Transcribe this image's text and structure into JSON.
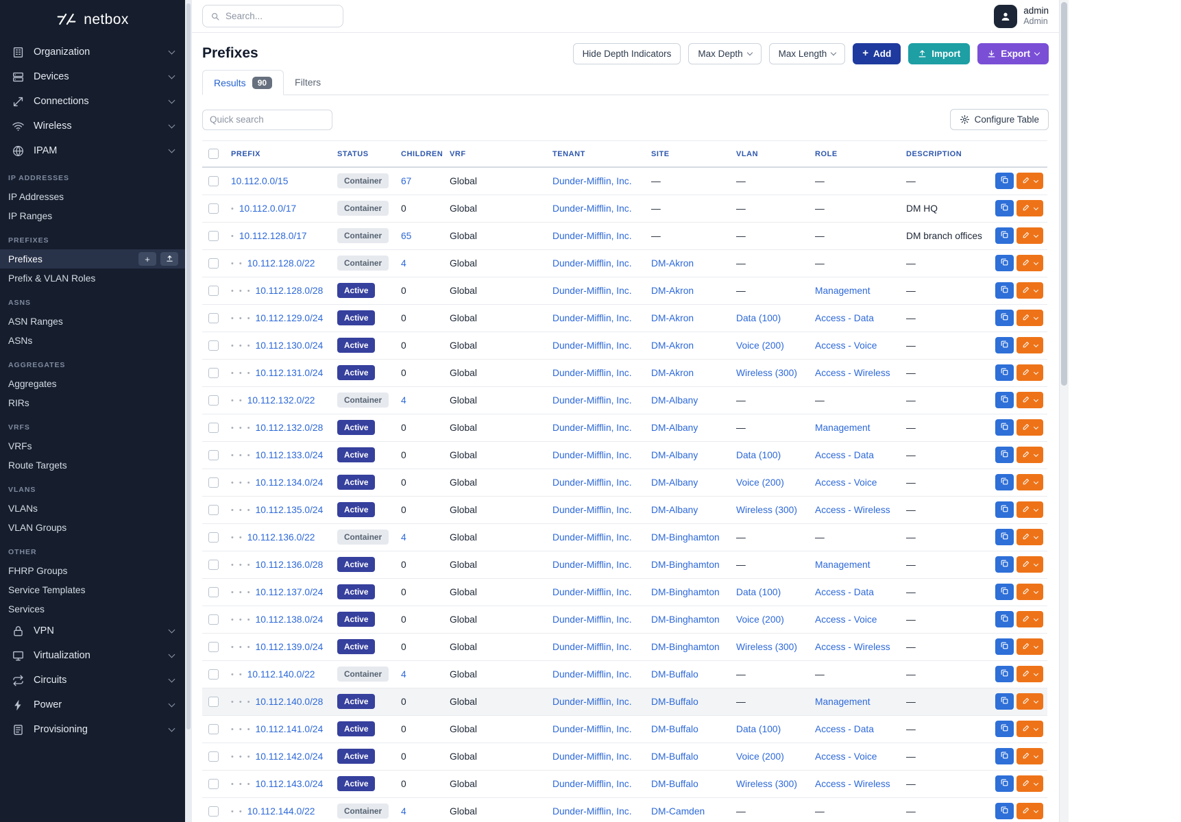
{
  "colors": {
    "sidebar_bg": "#161e2d",
    "link": "#2c68d9",
    "add_button": "#1f3a9e",
    "import_button": "#1d9fa4",
    "export_button": "#7a4fd6",
    "active_badge": "#36409d",
    "edit_button": "#ee7318",
    "copy_button": "#2e6fd8"
  },
  "sidebar": {
    "logo_text": "netbox",
    "top_items": [
      {
        "label": "Organization",
        "icon": "building-icon"
      },
      {
        "label": "Devices",
        "icon": "devices-icon"
      },
      {
        "label": "Connections",
        "icon": "connections-icon"
      },
      {
        "label": "Wireless",
        "icon": "wifi-icon"
      },
      {
        "label": "IPAM",
        "icon": "ipam-icon"
      }
    ],
    "sections": [
      {
        "header": "IP Addresses",
        "items": [
          "IP Addresses",
          "IP Ranges"
        ]
      },
      {
        "header": "Prefixes",
        "items": [
          "Prefixes",
          "Prefix & VLAN Roles"
        ],
        "selected": "Prefixes"
      },
      {
        "header": "ASNs",
        "items": [
          "ASN Ranges",
          "ASNs"
        ]
      },
      {
        "header": "Aggregates",
        "items": [
          "Aggregates",
          "RIRs"
        ]
      },
      {
        "header": "VRFs",
        "items": [
          "VRFs",
          "Route Targets"
        ]
      },
      {
        "header": "VLANs",
        "items": [
          "VLANs",
          "VLAN Groups"
        ]
      },
      {
        "header": "Other",
        "items": [
          "FHRP Groups",
          "Service Templates",
          "Services"
        ]
      }
    ],
    "bottom_items": [
      {
        "label": "VPN",
        "icon": "vpn-icon"
      },
      {
        "label": "Virtualization",
        "icon": "virtualization-icon"
      },
      {
        "label": "Circuits",
        "icon": "circuits-icon"
      },
      {
        "label": "Power",
        "icon": "power-icon"
      },
      {
        "label": "Provisioning",
        "icon": "provisioning-icon"
      }
    ]
  },
  "topbar": {
    "search_placeholder": "Search...",
    "user": {
      "name": "admin",
      "role": "Admin"
    }
  },
  "page": {
    "title": "Prefixes",
    "toolbar": {
      "hide_depth": "Hide Depth Indicators",
      "max_depth": "Max Depth",
      "max_length": "Max Length",
      "add": "Add",
      "import": "Import",
      "export": "Export"
    },
    "tabs": [
      {
        "label": "Results",
        "badge": "90",
        "active": true
      },
      {
        "label": "Filters",
        "active": false
      }
    ],
    "quick_search_placeholder": "Quick search",
    "configure_table": "Configure Table"
  },
  "table": {
    "columns": [
      "PREFIX",
      "STATUS",
      "CHILDREN",
      "VRF",
      "TENANT",
      "SITE",
      "VLAN",
      "ROLE",
      "DESCRIPTION"
    ],
    "rows": [
      {
        "depth": 0,
        "prefix": "10.112.0.0/15",
        "status": "Container",
        "children": "67",
        "vrf": "Global",
        "tenant": "Dunder-Mifflin, Inc.",
        "site": "—",
        "vlan": "—",
        "role": "—",
        "description": "—"
      },
      {
        "depth": 1,
        "prefix": "10.112.0.0/17",
        "status": "Container",
        "children": "0",
        "vrf": "Global",
        "tenant": "Dunder-Mifflin, Inc.",
        "site": "—",
        "vlan": "—",
        "role": "—",
        "description": "DM HQ"
      },
      {
        "depth": 1,
        "prefix": "10.112.128.0/17",
        "status": "Container",
        "children": "65",
        "vrf": "Global",
        "tenant": "Dunder-Mifflin, Inc.",
        "site": "—",
        "vlan": "—",
        "role": "—",
        "description": "DM branch offices"
      },
      {
        "depth": 2,
        "prefix": "10.112.128.0/22",
        "status": "Container",
        "children": "4",
        "vrf": "Global",
        "tenant": "Dunder-Mifflin, Inc.",
        "site": "DM-Akron",
        "vlan": "—",
        "role": "—",
        "description": "—"
      },
      {
        "depth": 3,
        "prefix": "10.112.128.0/28",
        "status": "Active",
        "children": "0",
        "vrf": "Global",
        "tenant": "Dunder-Mifflin, Inc.",
        "site": "DM-Akron",
        "vlan": "—",
        "role": "Management",
        "description": "—"
      },
      {
        "depth": 3,
        "prefix": "10.112.129.0/24",
        "status": "Active",
        "children": "0",
        "vrf": "Global",
        "tenant": "Dunder-Mifflin, Inc.",
        "site": "DM-Akron",
        "vlan": "Data (100)",
        "role": "Access - Data",
        "description": "—"
      },
      {
        "depth": 3,
        "prefix": "10.112.130.0/24",
        "status": "Active",
        "children": "0",
        "vrf": "Global",
        "tenant": "Dunder-Mifflin, Inc.",
        "site": "DM-Akron",
        "vlan": "Voice (200)",
        "role": "Access - Voice",
        "description": "—"
      },
      {
        "depth": 3,
        "prefix": "10.112.131.0/24",
        "status": "Active",
        "children": "0",
        "vrf": "Global",
        "tenant": "Dunder-Mifflin, Inc.",
        "site": "DM-Akron",
        "vlan": "Wireless (300)",
        "role": "Access - Wireless",
        "description": "—"
      },
      {
        "depth": 2,
        "prefix": "10.112.132.0/22",
        "status": "Container",
        "children": "4",
        "vrf": "Global",
        "tenant": "Dunder-Mifflin, Inc.",
        "site": "DM-Albany",
        "vlan": "—",
        "role": "—",
        "description": "—"
      },
      {
        "depth": 3,
        "prefix": "10.112.132.0/28",
        "status": "Active",
        "children": "0",
        "vrf": "Global",
        "tenant": "Dunder-Mifflin, Inc.",
        "site": "DM-Albany",
        "vlan": "—",
        "role": "Management",
        "description": "—"
      },
      {
        "depth": 3,
        "prefix": "10.112.133.0/24",
        "status": "Active",
        "children": "0",
        "vrf": "Global",
        "tenant": "Dunder-Mifflin, Inc.",
        "site": "DM-Albany",
        "vlan": "Data (100)",
        "role": "Access - Data",
        "description": "—"
      },
      {
        "depth": 3,
        "prefix": "10.112.134.0/24",
        "status": "Active",
        "children": "0",
        "vrf": "Global",
        "tenant": "Dunder-Mifflin, Inc.",
        "site": "DM-Albany",
        "vlan": "Voice (200)",
        "role": "Access - Voice",
        "description": "—"
      },
      {
        "depth": 3,
        "prefix": "10.112.135.0/24",
        "status": "Active",
        "children": "0",
        "vrf": "Global",
        "tenant": "Dunder-Mifflin, Inc.",
        "site": "DM-Albany",
        "vlan": "Wireless (300)",
        "role": "Access - Wireless",
        "description": "—"
      },
      {
        "depth": 2,
        "prefix": "10.112.136.0/22",
        "status": "Container",
        "children": "4",
        "vrf": "Global",
        "tenant": "Dunder-Mifflin, Inc.",
        "site": "DM-Binghamton",
        "vlan": "—",
        "role": "—",
        "description": "—"
      },
      {
        "depth": 3,
        "prefix": "10.112.136.0/28",
        "status": "Active",
        "children": "0",
        "vrf": "Global",
        "tenant": "Dunder-Mifflin, Inc.",
        "site": "DM-Binghamton",
        "vlan": "—",
        "role": "Management",
        "description": "—"
      },
      {
        "depth": 3,
        "prefix": "10.112.137.0/24",
        "status": "Active",
        "children": "0",
        "vrf": "Global",
        "tenant": "Dunder-Mifflin, Inc.",
        "site": "DM-Binghamton",
        "vlan": "Data (100)",
        "role": "Access - Data",
        "description": "—"
      },
      {
        "depth": 3,
        "prefix": "10.112.138.0/24",
        "status": "Active",
        "children": "0",
        "vrf": "Global",
        "tenant": "Dunder-Mifflin, Inc.",
        "site": "DM-Binghamton",
        "vlan": "Voice (200)",
        "role": "Access - Voice",
        "description": "—"
      },
      {
        "depth": 3,
        "prefix": "10.112.139.0/24",
        "status": "Active",
        "children": "0",
        "vrf": "Global",
        "tenant": "Dunder-Mifflin, Inc.",
        "site": "DM-Binghamton",
        "vlan": "Wireless (300)",
        "role": "Access - Wireless",
        "description": "—"
      },
      {
        "depth": 2,
        "prefix": "10.112.140.0/22",
        "status": "Container",
        "children": "4",
        "vrf": "Global",
        "tenant": "Dunder-Mifflin, Inc.",
        "site": "DM-Buffalo",
        "vlan": "—",
        "role": "—",
        "description": "—"
      },
      {
        "depth": 3,
        "prefix": "10.112.140.0/28",
        "status": "Active",
        "children": "0",
        "vrf": "Global",
        "tenant": "Dunder-Mifflin, Inc.",
        "site": "DM-Buffalo",
        "vlan": "—",
        "role": "Management",
        "description": "—",
        "highlight": true
      },
      {
        "depth": 3,
        "prefix": "10.112.141.0/24",
        "status": "Active",
        "children": "0",
        "vrf": "Global",
        "tenant": "Dunder-Mifflin, Inc.",
        "site": "DM-Buffalo",
        "vlan": "Data (100)",
        "role": "Access - Data",
        "description": "—"
      },
      {
        "depth": 3,
        "prefix": "10.112.142.0/24",
        "status": "Active",
        "children": "0",
        "vrf": "Global",
        "tenant": "Dunder-Mifflin, Inc.",
        "site": "DM-Buffalo",
        "vlan": "Voice (200)",
        "role": "Access - Voice",
        "description": "—"
      },
      {
        "depth": 3,
        "prefix": "10.112.143.0/24",
        "status": "Active",
        "children": "0",
        "vrf": "Global",
        "tenant": "Dunder-Mifflin, Inc.",
        "site": "DM-Buffalo",
        "vlan": "Wireless (300)",
        "role": "Access - Wireless",
        "description": "—"
      },
      {
        "depth": 2,
        "prefix": "10.112.144.0/22",
        "status": "Container",
        "children": "4",
        "vrf": "Global",
        "tenant": "Dunder-Mifflin, Inc.",
        "site": "DM-Camden",
        "vlan": "—",
        "role": "—",
        "description": "—"
      }
    ]
  }
}
